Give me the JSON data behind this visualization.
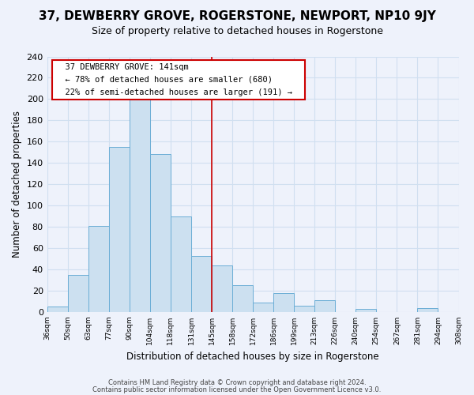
{
  "title": "37, DEWBERRY GROVE, ROGERSTONE, NEWPORT, NP10 9JY",
  "subtitle": "Size of property relative to detached houses in Rogerstone",
  "xlabel": "Distribution of detached houses by size in Rogerstone",
  "ylabel": "Number of detached properties",
  "footer_line1": "Contains HM Land Registry data © Crown copyright and database right 2024.",
  "footer_line2": "Contains public sector information licensed under the Open Government Licence v3.0.",
  "bin_labels": [
    "36sqm",
    "50sqm",
    "63sqm",
    "77sqm",
    "90sqm",
    "104sqm",
    "118sqm",
    "131sqm",
    "145sqm",
    "158sqm",
    "172sqm",
    "186sqm",
    "199sqm",
    "213sqm",
    "226sqm",
    "240sqm",
    "254sqm",
    "267sqm",
    "281sqm",
    "294sqm",
    "308sqm"
  ],
  "bar_values": [
    5,
    35,
    81,
    155,
    201,
    148,
    90,
    53,
    44,
    25,
    9,
    18,
    6,
    11,
    0,
    3,
    0,
    0,
    4,
    0
  ],
  "bar_color": "#cce0f0",
  "bar_edge_color": "#6baed6",
  "grid_color": "#d0dff0",
  "vline_color": "#cc0000",
  "annotation_title": "37 DEWBERRY GROVE: 141sqm",
  "annotation_line2": "← 78% of detached houses are smaller (680)",
  "annotation_line3": "22% of semi-detached houses are larger (191) →",
  "annotation_box_color": "#ffffff",
  "annotation_border_color": "#cc0000",
  "ylim": [
    0,
    240
  ],
  "yticks": [
    0,
    20,
    40,
    60,
    80,
    100,
    120,
    140,
    160,
    180,
    200,
    220,
    240
  ],
  "background_color": "#eef2fb",
  "title_fontsize": 11,
  "subtitle_fontsize": 9
}
